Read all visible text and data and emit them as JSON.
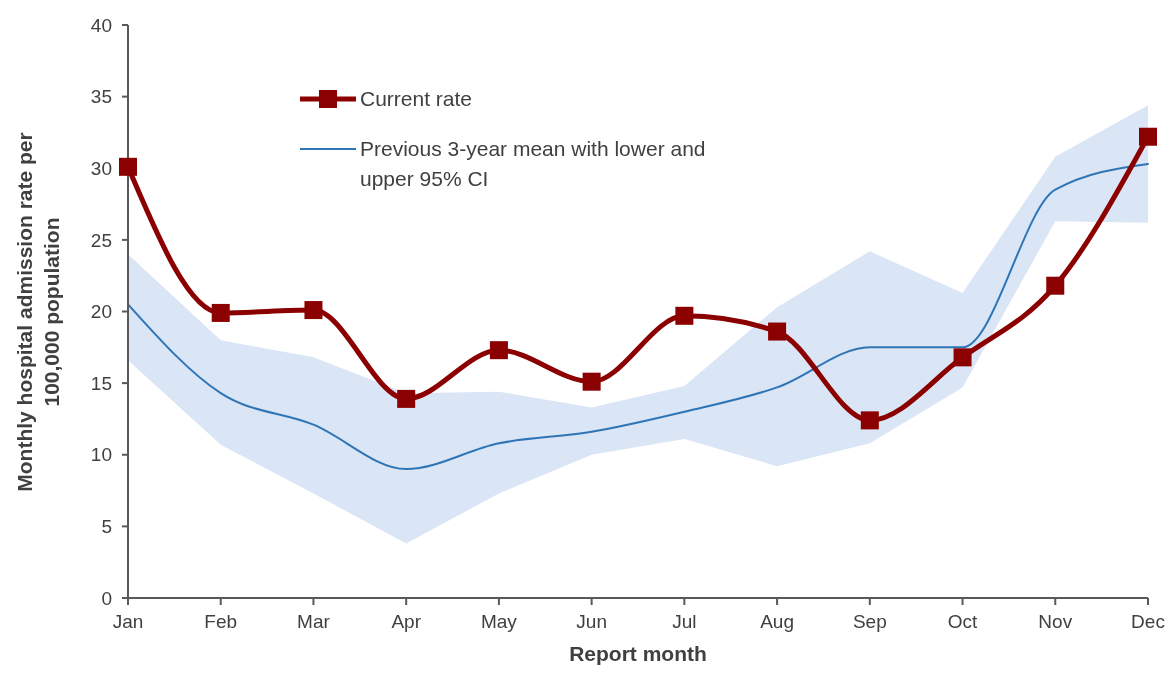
{
  "chart_data": {
    "type": "line",
    "xlabel": "Report month",
    "ylabel": "Monthly hospital admission rate per 100,000 population",
    "categories": [
      "Jan",
      "Feb",
      "Mar",
      "Apr",
      "May",
      "Jun",
      "Jul",
      "Aug",
      "Sep",
      "Oct",
      "Nov",
      "Dec"
    ],
    "series": [
      {
        "name": "Current rate",
        "color": "#8b0000",
        "marker": "square",
        "values": [
          30.1,
          19.9,
          20.1,
          13.9,
          17.3,
          15.1,
          19.7,
          18.6,
          12.4,
          16.8,
          21.8,
          32.2
        ]
      },
      {
        "name": "Previous 3-year mean with lower and upper 95% CI",
        "color": "#2e75b6",
        "marker": "none",
        "values": [
          20.5,
          14.3,
          12.1,
          9.0,
          10.8,
          11.6,
          13.0,
          14.7,
          17.5,
          17.5,
          28.5,
          30.3
        ],
        "lower": [
          16.6,
          10.7,
          7.3,
          3.8,
          7.3,
          10.0,
          11.1,
          9.2,
          10.8,
          14.7,
          26.3,
          26.2
        ],
        "upper": [
          24.0,
          18.0,
          16.8,
          14.3,
          14.4,
          13.3,
          14.8,
          20.3,
          24.2,
          21.3,
          30.8,
          34.4
        ]
      }
    ],
    "ylim": [
      0,
      40
    ],
    "yticks": [
      0,
      5,
      10,
      15,
      20,
      25,
      30,
      35,
      40
    ],
    "grid": false,
    "legend": "top left",
    "line_style": "solid"
  }
}
